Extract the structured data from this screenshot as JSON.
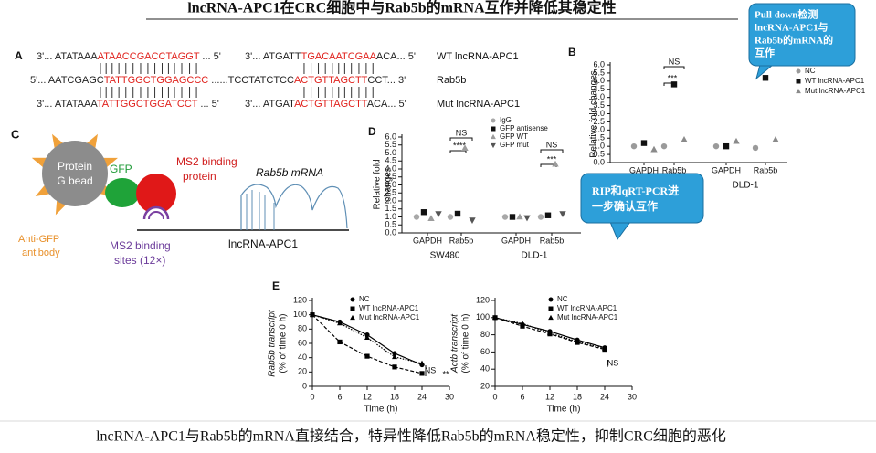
{
  "title": "lncRNA-APC1在CRC细胞中与Rab5b的mRNA互作并降低其稳定性",
  "caption": "lncRNA-APC1与Rab5b的mRNA直接结合，特异性降低Rab5b的mRNA稳定性，抑制CRC细胞的恶化",
  "callouts": [
    [
      "Pull down检测",
      "lncRNA-APC1与",
      "Rab5b的mRNA的",
      "互作"
    ],
    [
      "RIP和qRT-PCR进",
      "一步确认互作"
    ]
  ],
  "panel_a": {
    "label": "A",
    "rows": [
      {
        "parts": [
          [
            "3'... ATATAAA",
            "ATAACCGACCTAGGT",
            " ... 5'"
          ],
          [
            "3'... ATGATT",
            "TGACAATCGAA",
            "ACA... 5'"
          ]
        ],
        "name": "WT lncRNA-APC1"
      },
      {
        "parts": [
          [
            "5'... AATCGAGC",
            "TATTGGCTGGAGCCC",
            " ......TCCTATCTCC",
            "ACTGTTAGCTT",
            "CCT... 3'"
          ]
        ],
        "name": "Rab5b"
      },
      {
        "parts": [
          [
            "3'... ATATAAA",
            "TATTGGCTGGATCCT",
            " ... 5'"
          ],
          [
            "3'... ATGAT",
            "ACTGTTAGCTT",
            "ACA... 5'"
          ]
        ],
        "name": "Mut lncRNA-APC1"
      }
    ]
  },
  "panel_c": {
    "label": "C",
    "protein_g_bead": [
      "Protein",
      "G bead"
    ],
    "gfp": "GFP",
    "ms2_binding_protein": [
      "MS2 binding",
      "protein"
    ],
    "rab5b_mrna": "Rab5b mRNA",
    "anti_gfp_antibody": [
      "Anti-GFP",
      "antibody"
    ],
    "ms2_binding_sites": [
      "MS2 binding",
      "sites (12×)"
    ],
    "lncrna": "lncRNA-APC1"
  },
  "chart_data": [
    {
      "type": "dot",
      "panel": "B",
      "y_label": [
        "Relative fold changes"
      ],
      "ylim": [
        0,
        6
      ],
      "yticks": [
        {
          "value": 0,
          "label": "0.0"
        },
        0.5,
        {
          "value": 1,
          "label": "1.0"
        },
        1.5,
        {
          "value": 2,
          "label": "2.0"
        },
        2.5,
        {
          "value": 3,
          "label": "3.0"
        },
        3.5,
        {
          "value": 4,
          "label": "4.0"
        },
        4.5,
        {
          "value": 5,
          "label": "5.0"
        },
        5.5,
        {
          "value": 6,
          "label": "6.0"
        }
      ],
      "categories": [
        "GAPDH",
        "Rab5b",
        "GAPDH",
        "Rab5b"
      ],
      "groups": [
        null,
        "DLD-1"
      ],
      "series": [
        {
          "name": "NC",
          "color": "#9a9a9a",
          "marker": "circle",
          "values": [
            1.0,
            1.0,
            1.0,
            0.9
          ]
        },
        {
          "name": "WT lncRNA-APC1",
          "color": "#111111",
          "marker": "square",
          "values": [
            1.2,
            4.8,
            1.0,
            5.2
          ]
        },
        {
          "name": "Mut lncRNA-APC1",
          "color": "#8a8a8a",
          "marker": "triangle",
          "values": [
            0.8,
            1.4,
            1.3,
            1.4
          ]
        }
      ],
      "annotations": [
        "NS",
        "***"
      ]
    },
    {
      "type": "dot",
      "panel": "D",
      "y_label": [
        "Relative fold",
        "changes"
      ],
      "ylim": [
        0,
        6
      ],
      "yticks": [
        {
          "value": 0,
          "label": "0.0"
        },
        0.5,
        {
          "value": 1,
          "label": "1.0"
        },
        1.5,
        {
          "value": 2,
          "label": "2.0"
        },
        2.5,
        {
          "value": 3,
          "label": "3.0"
        },
        3.5,
        {
          "value": 4,
          "label": "4.0"
        },
        4.5,
        {
          "value": 5,
          "label": "5.0"
        },
        5.5,
        {
          "value": 6,
          "label": "6.0"
        }
      ],
      "categories": [
        "GAPDH",
        "Rab5b",
        "GAPDH",
        "Rab5b"
      ],
      "groups": [
        "SW480",
        "DLD-1"
      ],
      "series": [
        {
          "name": "IgG",
          "color": "#a8a8a8",
          "marker": "circle",
          "values": [
            1.0,
            1.0,
            1.0,
            1.0
          ]
        },
        {
          "name": "GFP antisense",
          "color": "#111111",
          "marker": "square",
          "values": [
            1.3,
            1.2,
            1.0,
            1.1
          ]
        },
        {
          "name": "GFP WT",
          "color": "#9c9c9c",
          "marker": "triangle",
          "values": [
            0.9,
            5.3,
            1.0,
            4.3
          ]
        },
        {
          "name": "GFP mut",
          "color": "#555555",
          "marker": "triangle-down",
          "values": [
            1.2,
            0.8,
            0.95,
            1.2
          ]
        }
      ],
      "annotations": [
        "NS",
        "****",
        "NS",
        "***"
      ]
    },
    {
      "type": "line",
      "panel": "E",
      "y_label": [
        "Rab5b transcript",
        "(% of time 0 h)"
      ],
      "x_label": "Time (h)",
      "x": [
        0,
        6,
        12,
        18,
        24
      ],
      "xlim": [
        0,
        30
      ],
      "xticks": [
        0,
        6,
        12,
        18,
        24,
        30
      ],
      "ylim": [
        0,
        120
      ],
      "yticks": [
        0,
        20,
        40,
        60,
        80,
        100,
        120
      ],
      "series": [
        {
          "name": "NC",
          "color": "#000000",
          "marker": "circle",
          "line_style": "solid",
          "values": [
            100,
            90,
            72,
            46,
            30
          ]
        },
        {
          "name": "WT lncRNA-APC1",
          "color": "#000000",
          "marker": "square",
          "line_style": "dashed",
          "values": [
            100,
            62,
            42,
            27,
            18
          ]
        },
        {
          "name": "Mut lncRNA-APC1",
          "color": "#000000",
          "marker": "triangle",
          "line_style": "dotted",
          "values": [
            100,
            88,
            68,
            41,
            32
          ]
        }
      ],
      "annotations": [
        "NS",
        "**"
      ]
    },
    {
      "type": "line",
      "y_label": [
        "Actb transcript",
        "(% of time 0 h)"
      ],
      "x_label": "Time (h)",
      "x": [
        0,
        6,
        12,
        18,
        24
      ],
      "xlim": [
        0,
        30
      ],
      "xticks": [
        0,
        6,
        12,
        18,
        24,
        30
      ],
      "ylim": [
        20,
        120
      ],
      "yticks": [
        20,
        40,
        60,
        80,
        100,
        120
      ],
      "series": [
        {
          "name": "NC",
          "color": "#000000",
          "marker": "circle",
          "line_style": "solid",
          "values": [
            100,
            92,
            84,
            74,
            65
          ]
        },
        {
          "name": "WT lncRNA-APC1",
          "color": "#000000",
          "marker": "square",
          "line_style": "dashed",
          "values": [
            100,
            90,
            81,
            71,
            63
          ]
        },
        {
          "name": "Mut lncRNA-APC1",
          "color": "#000000",
          "marker": "triangle",
          "line_style": "dotted",
          "values": [
            100,
            93,
            82,
            72,
            64
          ]
        }
      ],
      "annotations": [
        "NS"
      ]
    }
  ]
}
